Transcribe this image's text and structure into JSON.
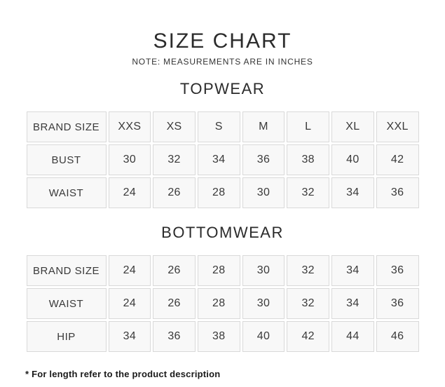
{
  "header": {
    "title": "SIZE CHART",
    "note": "NOTE: MEASUREMENTS ARE IN INCHES"
  },
  "footer": {
    "note": "* For length refer to the product description"
  },
  "colors": {
    "text": "#2e2e2e",
    "cell_background": "#f8f8f8",
    "cell_border": "#d9d9d9",
    "page_background": "#ffffff"
  },
  "chart_data": [
    {
      "type": "table",
      "title": "TOPWEAR",
      "rows": [
        [
          "BRAND SIZE",
          "XXS",
          "XS",
          "S",
          "M",
          "L",
          "XL",
          "XXL"
        ],
        [
          "BUST",
          "30",
          "32",
          "34",
          "36",
          "38",
          "40",
          "42"
        ],
        [
          "WAIST",
          "24",
          "26",
          "28",
          "30",
          "32",
          "34",
          "36"
        ]
      ]
    },
    {
      "type": "table",
      "title": "BOTTOMWEAR",
      "rows": [
        [
          "BRAND SIZE",
          "24",
          "26",
          "28",
          "30",
          "32",
          "34",
          "36"
        ],
        [
          "WAIST",
          "24",
          "26",
          "28",
          "30",
          "32",
          "34",
          "36"
        ],
        [
          "HIP",
          "34",
          "36",
          "38",
          "40",
          "42",
          "44",
          "46"
        ]
      ]
    }
  ]
}
